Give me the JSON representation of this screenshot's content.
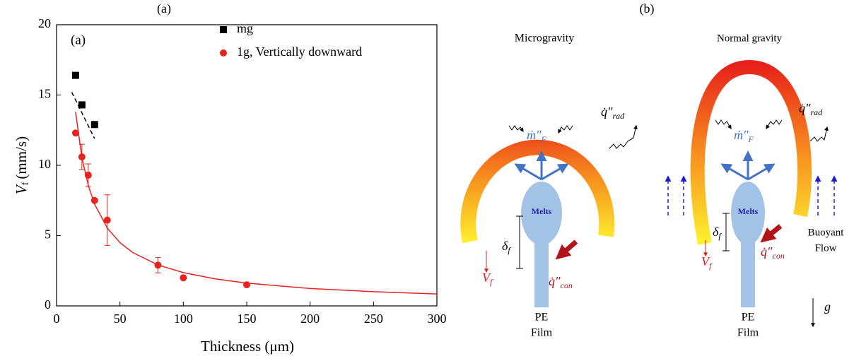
{
  "figure": {
    "label_a": "(a)",
    "label_b": "(b)"
  },
  "chart_data": {
    "type": "scatter",
    "annotation": "(a)",
    "xlabel": "Thickness (μm)",
    "ylabel": {
      "symbol": "V",
      "subscript": "f",
      "unit": "(mm/s)"
    },
    "xlim": [
      0,
      300
    ],
    "xticks": [
      0,
      50,
      100,
      150,
      200,
      250,
      300
    ],
    "ylim": [
      0,
      20
    ],
    "yticks": [
      0,
      5,
      10,
      15,
      20
    ],
    "legend": "upper right",
    "series": [
      {
        "name": "mg",
        "color": "#000000",
        "marker": "square",
        "x": [
          15,
          20,
          30
        ],
        "values": [
          16.4,
          14.3,
          12.9
        ]
      },
      {
        "name": "1g, Vertically downward",
        "color": "#e8231f",
        "marker": "circle",
        "x": [
          15,
          20,
          25,
          30,
          40,
          80,
          100,
          150
        ],
        "values": [
          12.3,
          10.6,
          9.3,
          7.5,
          6.1,
          2.9,
          2.0,
          1.5
        ],
        "errors": [
          null,
          0.9,
          0.8,
          null,
          1.8,
          0.55,
          null,
          null
        ]
      }
    ],
    "fits": [
      {
        "color": "#000000",
        "dashed": true,
        "x": [
          12,
          30
        ],
        "values": [
          15.2,
          11.9
        ]
      },
      {
        "color": "#e8231f",
        "dashed": false,
        "x": [
          15,
          20,
          25,
          30,
          40,
          50,
          60,
          80,
          100,
          125,
          150,
          200,
          250,
          300
        ],
        "values": [
          13.8,
          10.56,
          8.58,
          7.24,
          5.54,
          4.5,
          3.8,
          2.91,
          2.37,
          1.92,
          1.62,
          1.24,
          1.01,
          0.85
        ]
      }
    ]
  },
  "diagram": {
    "microgravity": {
      "title": "Microgravity",
      "mass_flux": {
        "main": "ṁ″",
        "sub": "F"
      },
      "rad": {
        "main": "q̇″",
        "sub": "rad"
      },
      "melts": "Melts",
      "delta": {
        "main": "δ",
        "sub": "f"
      },
      "speed": {
        "main": "V",
        "sub": "f"
      },
      "con": {
        "main": "q̇″",
        "sub": "con"
      },
      "film": [
        "PE",
        "Film"
      ]
    },
    "normal": {
      "title": "Normal gravity",
      "mass_flux": {
        "main": "ṁ″",
        "sub": "F"
      },
      "rad": {
        "main": "q̇″",
        "sub": "rad"
      },
      "melts": "Melts",
      "delta": {
        "main": "δ",
        "sub": "f"
      },
      "speed": {
        "main": "V",
        "sub": "f"
      },
      "con": {
        "main": "q̇″",
        "sub": "con"
      },
      "film": [
        "PE",
        "Film"
      ],
      "buoyant": [
        "Buoyant",
        "Flow"
      ],
      "gravity": "g⃗"
    }
  }
}
